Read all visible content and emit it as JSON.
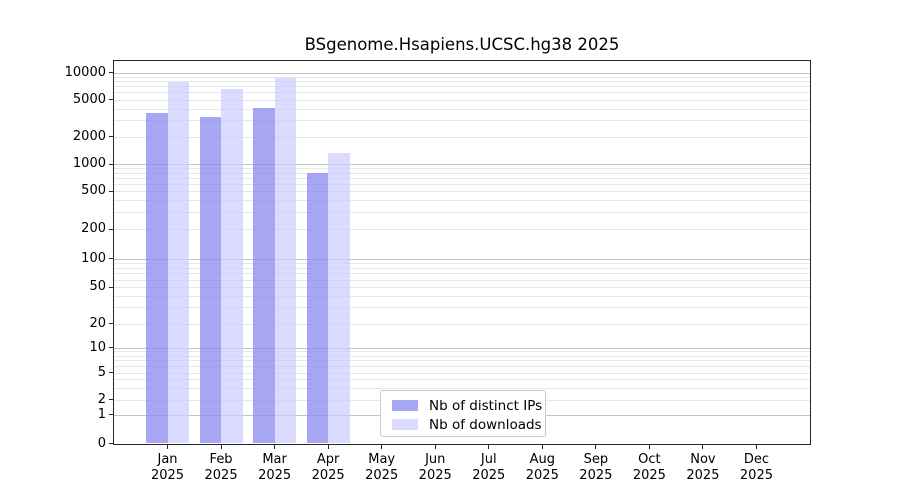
{
  "chart_data": {
    "type": "bar",
    "title": "BSgenome.Hsapiens.UCSC.hg38 2025",
    "year": "2025",
    "categories": [
      "Jan",
      "Feb",
      "Mar",
      "Apr",
      "May",
      "Jun",
      "Jul",
      "Aug",
      "Sep",
      "Oct",
      "Nov",
      "Dec"
    ],
    "series": [
      {
        "name": "Nb of distinct IPs",
        "color": "#8888ee",
        "alpha": 0.75,
        "values": [
          3550,
          3270,
          4080,
          800,
          null,
          null,
          null,
          null,
          null,
          null,
          null,
          null
        ]
      },
      {
        "name": "Nb of downloads",
        "color": "#ccccff",
        "alpha": 0.7,
        "values": [
          7900,
          6550,
          8630,
          1310,
          null,
          null,
          null,
          null,
          null,
          null,
          null,
          null
        ]
      }
    ],
    "yticks": [
      0,
      1,
      2,
      5,
      10,
      20,
      50,
      100,
      200,
      500,
      1000,
      2000,
      5000,
      10000
    ],
    "yscale": "symlog",
    "ylim": [
      0,
      14000
    ],
    "grid": true,
    "legend_position": "lower center",
    "xlabel": "",
    "ylabel": ""
  },
  "colors": {
    "decade_gridline": "#c4c4c4",
    "minor_gridline": "#e7e7e7",
    "axis": "#262626"
  }
}
